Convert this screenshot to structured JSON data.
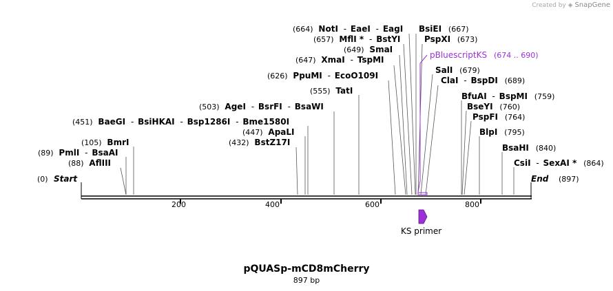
{
  "watermark": {
    "prefix": "Created by",
    "brand": "SnapGene"
  },
  "title": "pQUASp-mCD8mCherry",
  "subtitle": "897 bp",
  "colors": {
    "feature": "#9b30d6",
    "line": "#000000",
    "text": "#000000",
    "watermark": "#a8a8a8"
  },
  "axis": {
    "start_label": "Start",
    "start_pos": "(0)",
    "end_label": "End",
    "end_pos": "(897)",
    "ticks": [
      "200",
      "400",
      "600",
      "800"
    ]
  },
  "primer": {
    "label": "KS primer"
  },
  "feature": {
    "name": "pBluescriptKS",
    "range": "(674 .. 690)"
  },
  "sites": [
    {
      "pos": "(89)",
      "names": [
        "PmlI",
        "BsaAI"
      ]
    },
    {
      "pos": "(88)",
      "names": [
        "AflIII"
      ]
    },
    {
      "pos": "(105)",
      "names": [
        "BmrI"
      ]
    },
    {
      "pos": "(451)",
      "names": [
        "BaeGI",
        "BsiHKAI",
        "Bsp1286I",
        "Bme1580I"
      ]
    },
    {
      "pos": "(432)",
      "names": [
        "BstZ17I"
      ]
    },
    {
      "pos": "(447)",
      "names": [
        "ApaLI"
      ]
    },
    {
      "pos": "(503)",
      "names": [
        "AgeI",
        "BsrFI",
        "BsaWI"
      ]
    },
    {
      "pos": "(555)",
      "names": [
        "TatI"
      ]
    },
    {
      "pos": "(626)",
      "names": [
        "PpuMI",
        "EcoO109I"
      ]
    },
    {
      "pos": "(647)",
      "names": [
        "XmaI",
        "TspMI"
      ]
    },
    {
      "pos": "(649)",
      "names": [
        "SmaI"
      ]
    },
    {
      "pos": "(657)",
      "names": [
        "MflI *",
        "BstYI"
      ]
    },
    {
      "pos": "(664)",
      "names": [
        "NotI",
        "EaeI",
        "EagI"
      ]
    },
    {
      "pos": "(667)",
      "names": [
        "BsiEI"
      ]
    },
    {
      "pos": "(673)",
      "names": [
        "PspXI"
      ]
    },
    {
      "pos": "(679)",
      "names": [
        "SalI"
      ]
    },
    {
      "pos": "(689)",
      "names": [
        "ClaI",
        "BspDI"
      ]
    },
    {
      "pos": "(759)",
      "names": [
        "BfuAI",
        "BspMI"
      ]
    },
    {
      "pos": "(760)",
      "names": [
        "BseYI"
      ]
    },
    {
      "pos": "(764)",
      "names": [
        "PspFI"
      ]
    },
    {
      "pos": "(795)",
      "names": [
        "BlpI"
      ]
    },
    {
      "pos": "(840)",
      "names": [
        "BsaHI"
      ]
    },
    {
      "pos": "(864)",
      "names": [
        "CsiI",
        "SexAI *"
      ]
    }
  ]
}
